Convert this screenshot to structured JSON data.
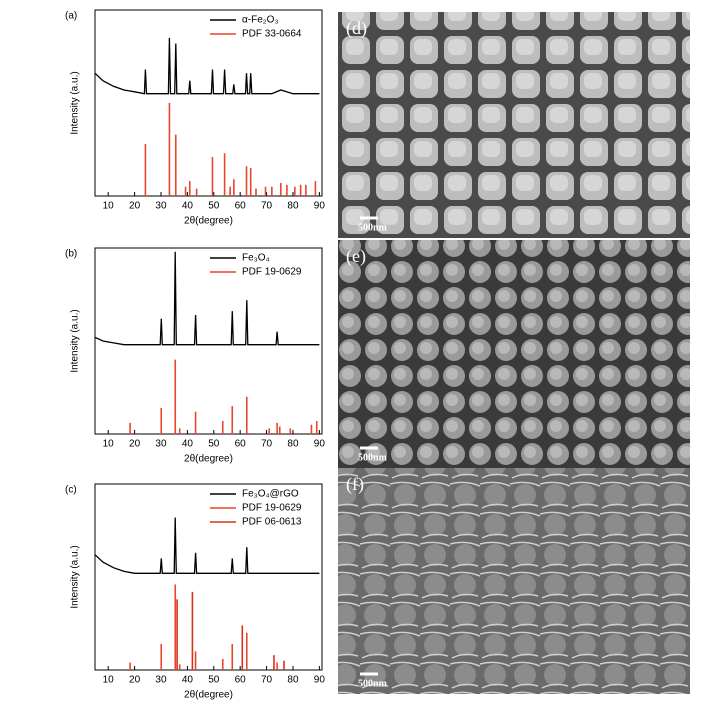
{
  "chart_data": [
    {
      "type": "line",
      "panel": "(a)",
      "xlabel": "2θ(degree)",
      "ylabel": "Intensity (a.u.)",
      "xlim": [
        5,
        91
      ],
      "xticks": [
        10,
        20,
        30,
        40,
        50,
        60,
        70,
        80,
        90
      ],
      "ylim": [
        0,
        100
      ],
      "series": [
        {
          "name": "α-Fe₂O₃",
          "type": "line",
          "color": "#000000",
          "x": [
            5,
            8,
            12,
            16,
            20,
            23.7,
            24.1,
            24.5,
            32.8,
            33.2,
            33.6,
            35.2,
            35.6,
            36,
            40.5,
            40.9,
            41.3,
            49.1,
            49.5,
            49.9,
            53.7,
            54.1,
            54.5,
            57.2,
            57.6,
            58,
            62,
            62.4,
            62.8,
            63.6,
            64,
            64.4,
            72,
            75.4,
            80,
            90
          ],
          "values": [
            66,
            62,
            59,
            57,
            56,
            55,
            68,
            55,
            55,
            85,
            55,
            55,
            82,
            55,
            55,
            62,
            55,
            55,
            68,
            55,
            55,
            68,
            55,
            55,
            60,
            55,
            55,
            66,
            55,
            55,
            66,
            55,
            55,
            57,
            55,
            55
          ]
        },
        {
          "name": "PDF 33-0664",
          "type": "stem",
          "color": "#e8452c",
          "x": [
            24.1,
            33.2,
            35.6,
            39.3,
            40.9,
            43.5,
            49.5,
            54.1,
            56.2,
            57.6,
            62.4,
            64.0,
            66.0,
            69.6,
            72.0,
            75.4,
            77.7,
            80.7,
            82.9,
            84.9,
            88.5
          ],
          "values": [
            28,
            50,
            33,
            5,
            8,
            4,
            21,
            23,
            5,
            9,
            16,
            15,
            4,
            5,
            5,
            7,
            6,
            5,
            6,
            6,
            8
          ]
        }
      ]
    },
    {
      "type": "line",
      "panel": "(b)",
      "xlabel": "2θ(degree)",
      "ylabel": "Intensity (a.u.)",
      "xlim": [
        5,
        91
      ],
      "xticks": [
        10,
        20,
        30,
        40,
        50,
        60,
        70,
        80,
        90
      ],
      "ylim": [
        0,
        100
      ],
      "series": [
        {
          "name": "Fe₃O₄",
          "type": "line",
          "color": "#000000",
          "x": [
            5,
            8,
            12,
            16,
            20,
            29.7,
            30.1,
            30.5,
            35,
            35.4,
            35.8,
            42.7,
            43.1,
            43.5,
            56.6,
            57,
            57.4,
            62.1,
            62.5,
            62.9,
            73.6,
            74,
            74.4,
            90
          ],
          "values": [
            52,
            50,
            49,
            48,
            48,
            48,
            62,
            48,
            48,
            98,
            48,
            48,
            64,
            48,
            48,
            66,
            48,
            48,
            72,
            48,
            48,
            55,
            48,
            48
          ]
        },
        {
          "name": "PDF 19-0629",
          "type": "stem",
          "color": "#e8452c",
          "x": [
            18.3,
            30.1,
            35.4,
            37.1,
            43.1,
            53.4,
            57.0,
            62.5,
            71.0,
            74.0,
            75.0,
            79.0,
            87.0,
            89.0
          ],
          "values": [
            6,
            14,
            40,
            3,
            12,
            7,
            15,
            20,
            3,
            6,
            4,
            3,
            5,
            7
          ]
        }
      ]
    },
    {
      "type": "line",
      "panel": "(c)",
      "xlabel": "2θ(degree)",
      "ylabel": "Intensity (a.u.)",
      "xlim": [
        5,
        91
      ],
      "xticks": [
        10,
        20,
        30,
        40,
        50,
        60,
        70,
        80,
        90
      ],
      "ylim": [
        0,
        100
      ],
      "series": [
        {
          "name": "Fe₃O₄@rGO",
          "type": "line",
          "color": "#000000",
          "x": [
            5,
            8,
            12,
            16,
            20,
            29.7,
            30.1,
            30.5,
            35,
            35.4,
            35.8,
            42.7,
            43.1,
            43.5,
            56.6,
            57,
            57.4,
            62.1,
            62.5,
            62.9,
            90
          ],
          "values": [
            62,
            58,
            55,
            53,
            52,
            52,
            60,
            52,
            52,
            82,
            52,
            52,
            63,
            52,
            52,
            60,
            52,
            52,
            66,
            52,
            52
          ]
        },
        {
          "name": "PDF 19-0629",
          "type": "stem",
          "color": "#e8452c",
          "x": [
            18.3,
            30.1,
            35.4,
            37.1,
            43.1,
            53.4,
            57.0,
            62.5,
            74.0
          ],
          "values": [
            4,
            14,
            46,
            3,
            10,
            6,
            14,
            20,
            4
          ]
        },
        {
          "name": "PDF 06-0613",
          "type": "stem",
          "color": "#d9301a",
          "x": [
            36.1,
            41.9,
            60.8,
            72.8,
            76.6
          ],
          "values": [
            38,
            42,
            24,
            8,
            5
          ]
        }
      ]
    }
  ],
  "images": [
    {
      "label": "(d)",
      "scale_bar": "500nm"
    },
    {
      "label": "(e)",
      "scale_bar": "500nm"
    },
    {
      "label": "(f)",
      "scale_bar": "500nm"
    }
  ]
}
